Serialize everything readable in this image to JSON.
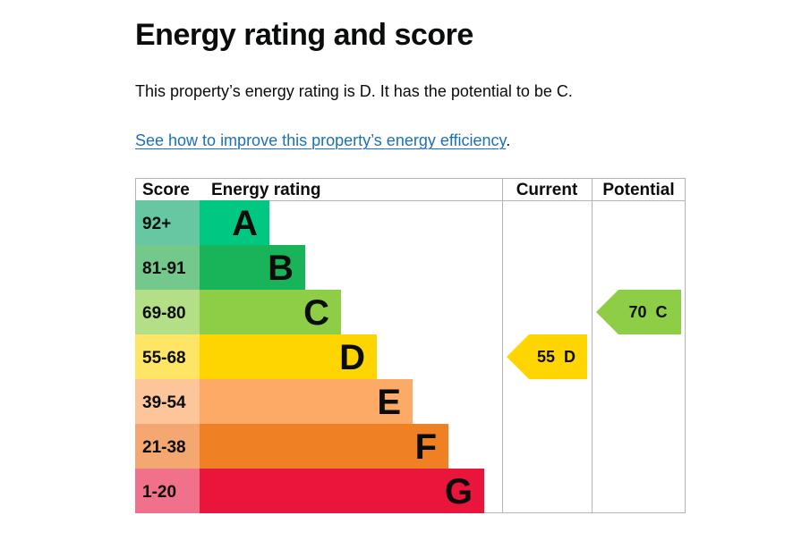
{
  "heading": "Energy rating and score",
  "summary_text": "This property’s energy rating is D. It has the potential to be C.",
  "improve_link": {
    "text": "See how to improve this property’s energy efficiency",
    "suffix": "."
  },
  "chart_data": {
    "type": "table",
    "columns": [
      "Score",
      "Energy rating",
      "Current",
      "Potential"
    ],
    "bands": [
      {
        "letter": "A",
        "score_range": "92+",
        "bar_color": "#00c781",
        "score_color": "#67c7a3"
      },
      {
        "letter": "B",
        "score_range": "81-91",
        "bar_color": "#19b459",
        "score_color": "#74c88c"
      },
      {
        "letter": "C",
        "score_range": "69-80",
        "bar_color": "#8dce46",
        "score_color": "#b5df86"
      },
      {
        "letter": "D",
        "score_range": "55-68",
        "bar_color": "#ffd500",
        "score_color": "#ffe566"
      },
      {
        "letter": "E",
        "score_range": "39-54",
        "bar_color": "#fcaa65",
        "score_color": "#fdc59a"
      },
      {
        "letter": "F",
        "score_range": "21-38",
        "bar_color": "#ef8023",
        "score_color": "#f4a771"
      },
      {
        "letter": "G",
        "score_range": "1-20",
        "bar_color": "#e9153b",
        "score_color": "#f07189"
      }
    ],
    "current": {
      "score": 55,
      "band": "D",
      "label": "55  D",
      "color": "#ffd500"
    },
    "potential": {
      "score": 70,
      "band": "C",
      "label": "70  C",
      "color": "#8dce46"
    }
  }
}
